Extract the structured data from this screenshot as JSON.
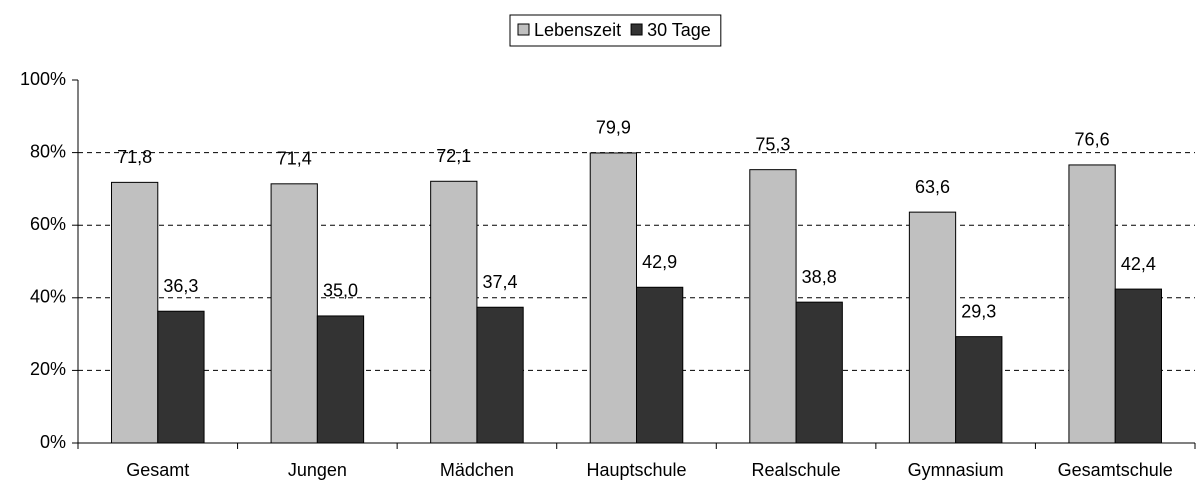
{
  "chart_data": {
    "type": "bar",
    "categories": [
      "Gesamt",
      "Jungen",
      "Mädchen",
      "Hauptschule",
      "Realschule",
      "Gymnasium",
      "Gesamtschule"
    ],
    "series": [
      {
        "name": "Lebenszeit",
        "color": "#c0c0c0",
        "values": [
          71.8,
          71.4,
          72.1,
          79.9,
          75.3,
          63.6,
          76.6
        ],
        "value_labels": [
          "71,8",
          "71,4",
          "72,1",
          "79,9",
          "75,3",
          "63,6",
          "76,6"
        ]
      },
      {
        "name": "30 Tage",
        "color": "#333333",
        "values": [
          36.3,
          35.0,
          37.4,
          42.9,
          38.8,
          29.3,
          42.4
        ],
        "value_labels": [
          "36,3",
          "35,0",
          "37,4",
          "42,9",
          "38,8",
          "29,3",
          "42,4"
        ]
      }
    ],
    "ylim": [
      0,
      100
    ],
    "yticks": [
      {
        "value": 0,
        "label": "0%"
      },
      {
        "value": 20,
        "label": "20%"
      },
      {
        "value": 40,
        "label": "40%"
      },
      {
        "value": 60,
        "label": "60%"
      },
      {
        "value": 80,
        "label": "80%"
      },
      {
        "value": 100,
        "label": "100%"
      }
    ],
    "grid": true,
    "legend": "top"
  }
}
